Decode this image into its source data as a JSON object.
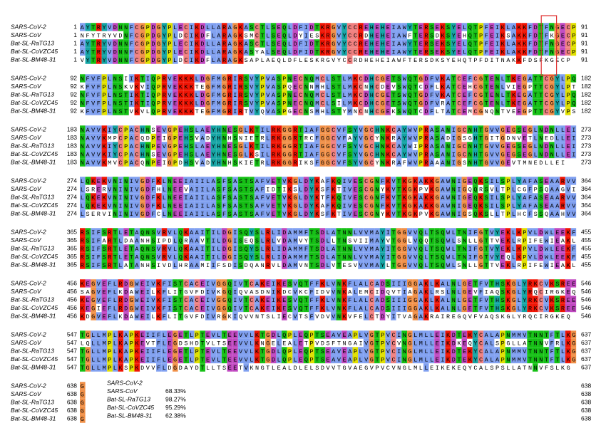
{
  "names": [
    "SARS-CoV-2",
    "SARS-CoV",
    "Bat-SL-RaTG13",
    "Bat-SL-CoVZC45",
    "Bat-SL-BM48-31"
  ],
  "blocks": [
    {
      "start": 1,
      "end": 91,
      "seqs": [
        "AYTRYVDNNFCGPDGYPLECIKDLLARAGKASCTLSEQLDFIDTKRGVYCCREHEHEIAWYTERSEKSYELQTPFEIKLAKKFDTFNGECP",
        "NFYTRYVDNFCGPDGYPLDCIKDFLARAGKSMCTLSEQLDYIESKRGVYCCRDHEHEIAWFTERSDKSYEHQTPFEIKSAKKFDTFKGECP",
        "AYTRYVDNNFCGPDGYPLECIKDLLARAGKASCTLSEQLDFIDTKRGVYCCREHEHEIAWYTERSEKSYELQTPFEIKLAKKFDTFNGECP",
        "AYTRYVDNNFCGPDGYPLECIKDLLARAGKASYALSEQLDFIDTKRGVYCCREHEHEIAWYTERSEKSYELQTPFEIKLAKKFDTFNGECP",
        "VYTRYVDNNFCGPDGYPLDCIKDFLARAGKSAPLAEQLDFLESKRGVYCCRDHEHEIAWFTERSDKSYEHQTPFDITNAKKFDSFKGECP"
      ]
    },
    {
      "start": 92,
      "end": 182,
      "seqs": [
        "NFVFPLNSIIKTIQPRVEKKKLDGFMGRIRSVYPVASPNECNQMCLSTLMKCDHCGETSWQTGDFVKATCEFCGTENLTKEGATTCGYLPQ",
        "KFVFPLNSKVKVIQPRVEKKKTEGFMGRIRSVYPVASPQECNNMHLSTLMKCNHCDEVSWQTCDFLKATCEHCGTENLVIEGPTTCGYLPT",
        "NFVFPLNSTIKTIQPRVEKKKLDGFMGRIRSVYPVASPNECNQMCLSTLMKCDHCGETSWQTGDFVKATCEFCGTENLTKEGATTCGYLPQ",
        "NFVFPLNSTIKTIQPRVEKKKLDGFMGRIRSVYPVASPNECNQMCLSILMKCDHCGETSWQTGDFVRATCEFCGTENLTKEGATTCGYLPQ",
        "KFVFPLNSTVKVLQPRVEKKKTEGFMGRIRTVYQVASPGECNSMHLSTYMNCNHCGEKSWQTCDFLTATCEMCGNQNTVEEGPTTCGYVPS"
      ]
    },
    {
      "start": 183,
      "end": 273,
      "seqs": [
        "NAVVKIYCPACHNSEVGPEHSLAEYHNESGLKTILRKGGRTIAFGGCVFSYVGCHNKCAYWVPRASANIGCNHTGVVGEGSEGLNDNLLEI",
        "NAVVKMPCPACQDPEIGPEHSVADYHNHSNIETRLRKGGRTRCFGGCVFAYVGCYNKRAYWVPRASADIGSGHTGITGDNVETLNEDLLEI",
        "NAVVKIYCPACHNPEVGPEHSLAEYHNESGLKTILRKGGRTIAFGGCVFSYVGCHNKCAYWIPRASANIGCNHTGVVGEGSEGLNDNLLEI",
        "NAVVKIYCPACHNSEVGPEHSLAEYHNESGLKSILRKGGRTIAFGGCVFSYVGCHNKCAYWVPRASANIGCNHTGVVGEGSEGLNDNLLEI",
        "NAVVKMVCPACQNPEIGPDHSVADYHNHSKIETRLRKGGRIKSFGGCVFSYVGCYNKRAFWVPRAAANIGSNHTGVVGEVTMNEDLLEI"
      ]
    },
    {
      "start": 274,
      "end": 364,
      "seqs": [
        "LQKEKVNINIVGDFKLNEEIAIILASFSASTSAFVETVKGLDYKAFKQIVESCGNFKVTKGKAKKGAWNIGEQKSILSPLYAFASEAARVV",
        "LSRERVNINIVGDFHLNEEVAIILASFSASTSAFIDTIKSLDYKSFKTIVESCGNYKVTKGKPVKGAWNIGQQRSVLTPLCGFPSQAAGVI",
        "LQKEKVNINIVGDFKLNEEIAIILASFSASTSAFVETVKGLDYKTFKQIVESCGNFKVTKGKAKKGAWNIGEQKSILSPLYAFASEAARVV",
        "LQKEKVNINIVGDFKLNEEIAIILASFSASTSAFVETVKGLDYKAFKQIVESCGNFKVTKGKAKKGAWNIGEQKSILSPLYAFASEAARVV",
        "LSERVININIVGDFCLNEEIAIILASFSASTSAFVETVKGLDYKSFKTIVESCGNYKVTKGKPVKGAWNIGSQKSLLTPLHCFSSQAAHVV"
      ]
    },
    {
      "start": 365,
      "end": 455,
      "seqs": [
        "RSIFSRTLETAQNSVRVLQKAAITILDGISQYSLRLIDAMMFTSDLATNNLVVMAYITGGVVQLTSQWLTNIFGTVYEKLKPVLDWLEEKF",
        "RSIFARTLDAANHSIPDLQRAAVTILDGISEQSLRLVDAMVYTSDLLTNSVIIMAYVTGGLVQQTSQWLSNLLGTTVEKLRPIFEWIEAKL",
        "RSIFSRTLETAQNSVRVLQKAAITILDGISQYSLRLIDAMMFTSDLATNNLVVMAYITGGVVQLTSQWLTNIFGTVYEKLKPVLDWLEEKF",
        "RSIFSRTLETAQNSVRVLQKAAITILDGISQYSLRLIDAMMFTSDLATNNLVVMAYITGGVVQLTSQWLTNIFGTVYEQLKPVLDWLEEKF",
        "RSIFSRTLATANHSIVDLHRAAMIIFSDISDQANRVLDAMVNTSDLVTESVVVMAYLTGGVVQLTSQWLSNLLGTTVEKLRPIFEWIEAKL"
      ]
    },
    {
      "start": 456,
      "end": 546,
      "seqs": [
        "KEGVEFLRDGWEIVKFISTCACEIVGGQIVTCAKEIKESVQTFFKLVNKFLALCADSIIIGGAKLKALNLGETFVTHSKGLYRKCVKSREE",
        "SAGVEFLKDAWEILKFLITGVFDIVKGQIQVASDNIKDCVKCFIDVVNKALEMCIDQVTIAGAKLRSLNLGEVFIAQSKGLYRQCIRGKEQ",
        "KEGVEFLRDGWEIVKFISTCACEIVGGQIVTCAKEIKESVQTFFKLVNKFLALCADSIIIGGAKLKALNLGETFVTHSKGLYRKCVKSREE",
        "KEGIEFLRDGWEIVKFISTCACEIVGGQIVTCAKEIKESVQTFFKLVNKFLALCADSIIIGGAKLKALNLGETFVTHSKGLYRKCVKSREE",
        "KDGVEFLKDAWEILKFLITGVFDIVRGKIQVVNTSLIECVTSFVDVVNKVFELCTDYITVAGAKRAIREGQVFVAQSKGLYRQCIRGKEQ"
      ]
    },
    {
      "start": 547,
      "end": 637,
      "seqs": [
        "TGLLMPLKAPKEIIFLEGETLPTEVLTEEVVLKTGDLQPLEQPTSEAVEAPLVGTPVCINGLMLLEIKDTEKYCALAPNMMVTNNTFTLKG",
        "LQLLMPLKAPKEVTFLEGDSHDTVLTSEEVVLKNGELEALETPVDSFTNGAIVGTPVCVNGLMLLEIKDKEQYCALSPGLLATNNVFRLKG",
        "TGLLMPLKAPKEIIFLEGETLPTEVLTEEVVLKTGDLQPLEQPTSEAVEAPLVGTPVCINGLMLLEIKDTEKYCALAPNMMVTNNTFTLKG",
        "TGLLMPLKAPKEIIFLEGETLPTEVLTEEVVLKTGDLQPLEQPTSEAVEAPLVGTPVCINGLMLLEIKDTEKYCALAPNMMVTNNTFTLKG",
        "TGLLMPLKSPKDVVFLDGDAYDTLLTSEETVKNGTLEALDLELSDVVTGVAEGVPVCVNGLMLLEIKEKEQYCALSPSLLATNNVFSLKG"
      ]
    },
    {
      "start": 638,
      "end": 638,
      "seqs": [
        "G",
        "G",
        "G",
        "G",
        "G"
      ]
    }
  ],
  "identity": [
    {
      "name": "SARS-CoV-2",
      "value": ""
    },
    {
      "name": "SARS-CoV",
      "value": "68.33%"
    },
    {
      "name": "Bat-SL-RaTG13",
      "value": "98.27%"
    },
    {
      "name": "Bat-SL-CoVZC45",
      "value": "95.29%"
    },
    {
      "name": "Bat-SL-BM48-31",
      "value": "62.38%"
    }
  ],
  "residue_colors": {
    "A": "#80a0f0",
    "I": "#80a0f0",
    "L": "#80a0f0",
    "M": "#80a0f0",
    "V": "#80a0f0",
    "F": "#80a0f0",
    "W": "#80a0f0",
    "K": "#f01505",
    "R": "#f01505",
    "D": "#c048c0",
    "E": "#c048c0",
    "N": "#15c015",
    "Q": "#15c015",
    "S": "#15c015",
    "T": "#15c015",
    "G": "#f09048",
    "P": "#e0e000",
    "H": "#15a4a4",
    "Y": "#15a4a4",
    "C": "#f08080"
  }
}
